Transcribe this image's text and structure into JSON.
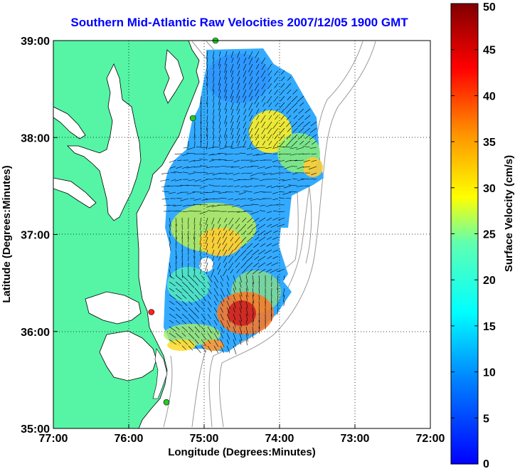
{
  "title": "Southern Mid-Atlantic Raw Velocities 2007/12/05 1900 GMT",
  "xlabel": "Longitude (Degrees:Minutes)",
  "ylabel": "Latitude (Degrees:Minutes)",
  "x_ticks": [
    "77:00",
    "76:00",
    "75:00",
    "74:00",
    "73:00",
    "72:00"
  ],
  "y_ticks": [
    "39:00",
    "38:00",
    "37:00",
    "36:00",
    "35:00"
  ],
  "colorbar": {
    "label": "Surface Velocity (cm/s)",
    "ticks": [
      "0",
      "5",
      "10",
      "15",
      "20",
      "25",
      "30",
      "35",
      "40",
      "45",
      "50"
    ],
    "range": [
      0,
      50
    ],
    "colors": [
      "#0000ff",
      "#0080ff",
      "#00ffff",
      "#80ffc0",
      "#ffff00",
      "#ff8000",
      "#ff0000",
      "#800000"
    ]
  },
  "map_extent": {
    "lon": [
      -77,
      -72
    ],
    "lat": [
      35,
      39
    ]
  },
  "colors": {
    "land": "#55f5a5",
    "coast_line": "#000000",
    "bathymetry": "#999999",
    "gridline": "#000000",
    "station_active": "#22cc22",
    "station_inactive": "#ff2222"
  },
  "stations": [
    {
      "lon": -74.85,
      "lat": 39.0,
      "status": "active"
    },
    {
      "lon": -75.15,
      "lat": 38.2,
      "status": "active"
    },
    {
      "lon": -75.7,
      "lat": 36.2,
      "status": "inactive"
    },
    {
      "lon": -75.5,
      "lat": 35.27,
      "status": "active"
    }
  ]
}
